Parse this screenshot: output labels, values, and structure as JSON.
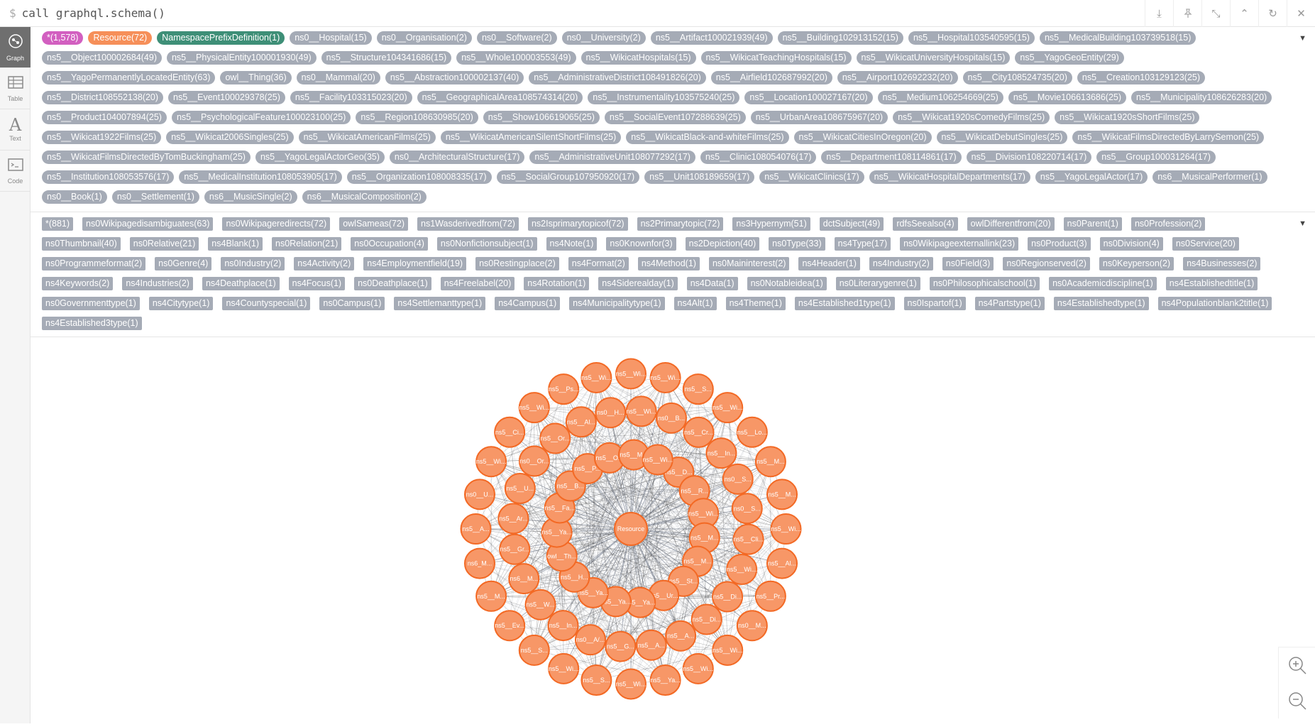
{
  "command": {
    "prompt": "$",
    "text": "call graphql.schema()"
  },
  "toolbar": {
    "download": "⤓",
    "pin": "📌",
    "collapse": "⤡",
    "up": "⌃",
    "refresh": "↻",
    "close": "✕"
  },
  "sidebar": [
    {
      "label": "Graph",
      "icon": "graph-icon"
    },
    {
      "label": "Table",
      "icon": "table-icon"
    },
    {
      "label": "Text",
      "icon": "text-icon"
    },
    {
      "label": "Code",
      "icon": "code-icon"
    }
  ],
  "labels": [
    "*(1,578)",
    "Resource(72)",
    "NamespacePrefixDefinition(1)",
    "ns0__Hospital(15)",
    "ns0__Organisation(2)",
    "ns0__Software(2)",
    "ns0__University(2)",
    "ns5__Artifact100021939(49)",
    "ns5__Building102913152(15)",
    "ns5__Hospital103540595(15)",
    "ns5__MedicalBuilding103739518(15)",
    "ns5__Object100002684(49)",
    "ns5__PhysicalEntity100001930(49)",
    "ns5__Structure104341686(15)",
    "ns5__Whole100003553(49)",
    "ns5__WikicatHospitals(15)",
    "ns5__WikicatTeachingHospitals(15)",
    "ns5__WikicatUniversityHospitals(15)",
    "ns5__YagoGeoEntity(29)",
    "ns5__YagoPermanentlyLocatedEntity(63)",
    "owl__Thing(36)",
    "ns0__Mammal(20)",
    "ns5__Abstraction100002137(40)",
    "ns5__AdministrativeDistrict108491826(20)",
    "ns5__Airfield102687992(20)",
    "ns5__Airport102692232(20)",
    "ns5__City108524735(20)",
    "ns5__Creation103129123(25)",
    "ns5__District108552138(20)",
    "ns5__Event100029378(25)",
    "ns5__Facility103315023(20)",
    "ns5__GeographicalArea108574314(20)",
    "ns5__Instrumentality103575240(25)",
    "ns5__Location100027167(20)",
    "ns5__Medium106254669(25)",
    "ns5__Movie106613686(25)",
    "ns5__Municipality108626283(20)",
    "ns5__Product104007894(25)",
    "ns5__PsychologicalFeature100023100(25)",
    "ns5__Region108630985(20)",
    "ns5__Show106619065(25)",
    "ns5__SocialEvent107288639(25)",
    "ns5__UrbanArea108675967(20)",
    "ns5__Wikicat1920sComedyFilms(25)",
    "ns5__Wikicat1920sShortFilms(25)",
    "ns5__Wikicat1922Films(25)",
    "ns5__Wikicat2006Singles(25)",
    "ns5__WikicatAmericanFilms(25)",
    "ns5__WikicatAmericanSilentShortFilms(25)",
    "ns5__WikicatBlack-and-whiteFilms(25)",
    "ns5__WikicatCitiesInOregon(20)",
    "ns5__WikicatDebutSingles(25)",
    "ns5__WikicatFilmsDirectedByLarrySemon(25)",
    "ns5__WikicatFilmsDirectedByTomBuckingham(25)",
    "ns5__YagoLegalActorGeo(35)",
    "ns0__ArchitecturalStructure(17)",
    "ns5__AdministrativeUnit108077292(17)",
    "ns5__Clinic108054076(17)",
    "ns5__Department108114861(17)",
    "ns5__Division108220714(17)",
    "ns5__Group100031264(17)",
    "ns5__Institution108053576(17)",
    "ns5__MedicalInstitution108053905(17)",
    "ns5__Organization108008335(17)",
    "ns5__SocialGroup107950920(17)",
    "ns5__Unit108189659(17)",
    "ns5__WikicatClinics(17)",
    "ns5__WikicatHospitalDepartments(17)",
    "ns5__YagoLegalActor(17)",
    "ns6__MusicalPerformer(1)",
    "ns0__Book(1)",
    "ns0__Settlement(1)",
    "ns6__MusicSingle(2)",
    "ns6__MusicalComposition(2)"
  ],
  "relationships": [
    "*(881)",
    "ns0Wikipagedisambiguates(63)",
    "ns0Wikipageredirects(72)",
    "owlSameas(72)",
    "ns1Wasderivedfrom(72)",
    "ns2Isprimarytopicof(72)",
    "ns2Primarytopic(72)",
    "ns3Hypernym(51)",
    "dctSubject(49)",
    "rdfsSeealso(4)",
    "owlDifferentfrom(20)",
    "ns0Parent(1)",
    "ns0Profession(2)",
    "ns0Thumbnail(40)",
    "ns0Relative(21)",
    "ns4Blank(1)",
    "ns0Relation(21)",
    "ns0Occupation(4)",
    "ns0Nonfictionsubject(1)",
    "ns4Note(1)",
    "ns0Knownfor(3)",
    "ns2Depiction(40)",
    "ns0Type(33)",
    "ns4Type(17)",
    "ns0Wikipageexternallink(23)",
    "ns0Product(3)",
    "ns0Division(4)",
    "ns0Service(20)",
    "ns0Programmeformat(2)",
    "ns0Genre(4)",
    "ns0Industry(2)",
    "ns4Activity(2)",
    "ns4Employmentfield(19)",
    "ns0Restingplace(2)",
    "ns4Format(2)",
    "ns4Method(1)",
    "ns0Maininterest(2)",
    "ns4Header(1)",
    "ns4Industry(2)",
    "ns0Field(3)",
    "ns0Regionserved(2)",
    "ns0Keyperson(2)",
    "ns4Businesses(2)",
    "ns4Keywords(2)",
    "ns4Industries(2)",
    "ns4Deathplace(1)",
    "ns4Focus(1)",
    "ns0Deathplace(1)",
    "ns4Freelabel(20)",
    "ns4Rotation(1)",
    "ns4Siderealday(1)",
    "ns4Data(1)",
    "ns0Notableidea(1)",
    "ns0Literarygenre(1)",
    "ns0Philosophicalschool(1)",
    "ns0Academicdiscipline(1)",
    "ns4Establishedtitle(1)",
    "ns0Governmenttype(1)",
    "ns4Citytype(1)",
    "ns4Countyspecial(1)",
    "ns0Campus(1)",
    "ns4Settlemanttype(1)",
    "ns4Campus(1)",
    "ns4Municipalitytype(1)",
    "ns4Alt(1)",
    "ns4Theme(1)",
    "ns4Established1type(1)",
    "ns0Ispartof(1)",
    "ns4Partstype(1)",
    "ns4Establishedtype(1)",
    "ns4Populationblank2title(1)",
    "ns4Established3type(1)"
  ],
  "graph": {
    "center": "Resource",
    "edge_label": "rules",
    "nodes": [
      "ns5__Wi...",
      "ns5__Wi...",
      "ns5__S...",
      "ns5__Wi...",
      "ns5__Lo...",
      "ns5__M...",
      "ns5__M...",
      "ns5__Wi...",
      "ns5__Al...",
      "ns5__Pr...",
      "ns0__M...",
      "ns5__Wi...",
      "ns5__Wi...",
      "ns5__Ya...",
      "ns5__Wi...",
      "ns5__S...",
      "ns5__Wi...",
      "ns5__S...",
      "ns5__Ev...",
      "ns5__M...",
      "ns6_M...",
      "ns5__A...",
      "ns0__U...",
      "ns5__Wi...",
      "ns5__Ci...",
      "ns5__Wi...",
      "ns5__Ps...",
      "ns5__Wi...",
      "ns0__B...",
      "ns5__Cr...",
      "ns5__In...",
      "ns0__S...",
      "ns0__S...",
      "ns5__Cli...",
      "ns5__Wi...",
      "ns5__Di...",
      "ns5__Di...",
      "ns5__A...",
      "ns5__A...",
      "ns5__G...",
      "ns0__A/...",
      "ns5__In...",
      "ns5__W...",
      "ns6__M...",
      "ns5__Gr...",
      "ns5__Ar...",
      "ns5__U...",
      "ns0__Or...",
      "ns5__Or...",
      "ns5__Al...",
      "ns0__H...",
      "ns5__Wi...",
      "ns5__D...",
      "ns5__R...",
      "ns5__Wi...",
      "ns5__M...",
      "ns5__M...",
      "ns5__St...",
      "ns5__Ur...",
      "ns5__Ya...",
      "ns5__Ya...",
      "ns5__Ya...",
      "ns5__H...",
      "owl__Th...",
      "ns5__Ya...",
      "ns5__Fa...",
      "ns5__B...",
      "ns5__P...",
      "ns5__O...",
      "ns5__M...",
      "ns5__Wi..."
    ]
  },
  "colors": {
    "node_fill": "#f79767",
    "node_stroke": "#f36924",
    "edge": "#a5abb6",
    "all_tag": "#d25fc0",
    "resource_tag": "#f68f59",
    "nsprefix_tag": "#3e8f77"
  },
  "zoom": {
    "in": "zoom-in-icon",
    "out": "zoom-out-icon"
  }
}
